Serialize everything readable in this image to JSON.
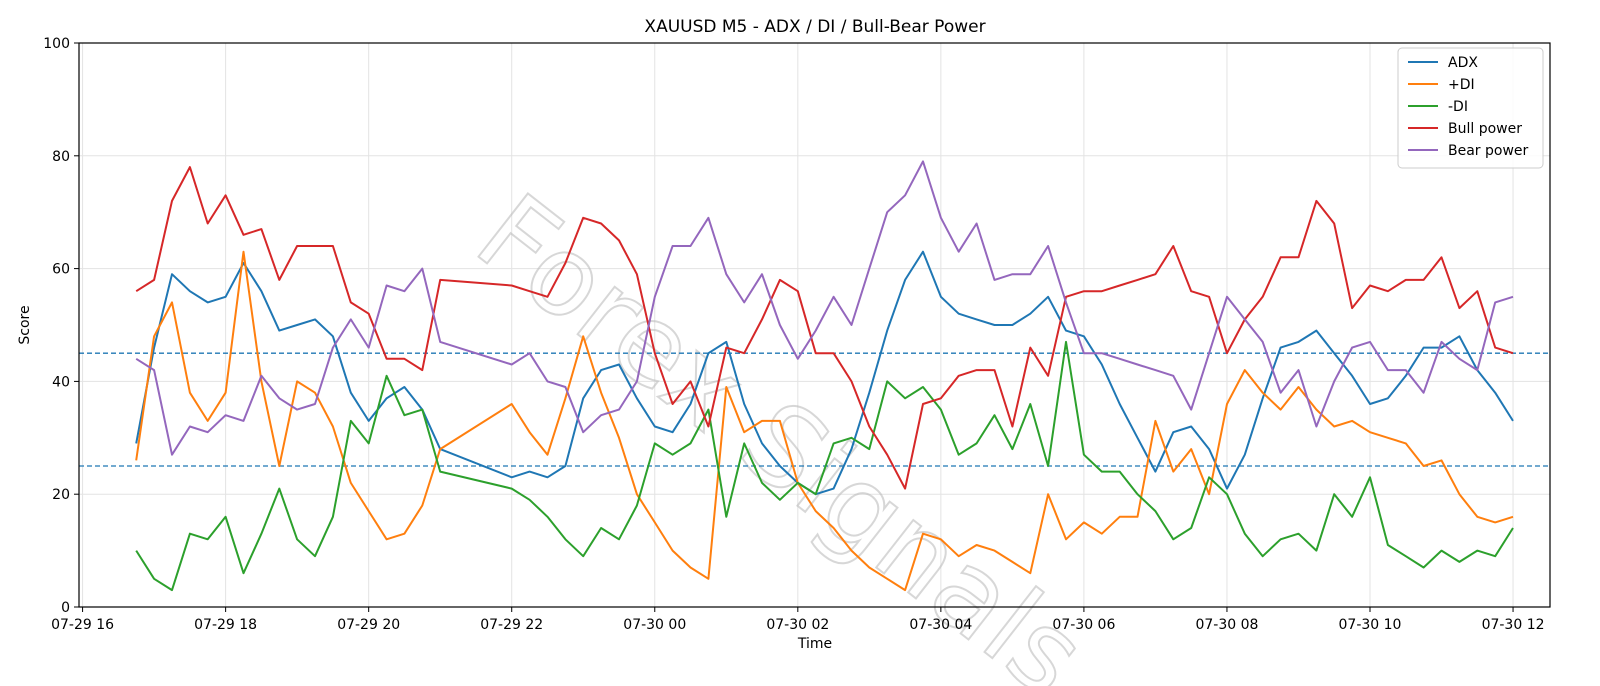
{
  "chart_data": {
    "type": "line",
    "title": "XAUUSD M5 - ADX / DI / Bull-Bear Power",
    "xlabel": "Time",
    "ylabel": "Score",
    "ylim": [
      0,
      100
    ],
    "yticks": [
      0,
      20,
      40,
      60,
      80,
      100
    ],
    "xlim": [
      "07-29 15:57",
      "07-30 12:31"
    ],
    "xticks": [
      "07-29 16",
      "07-29 18",
      "07-29 20",
      "07-29 22",
      "07-30 00",
      "07-30 02",
      "07-30 04",
      "07-30 06",
      "07-30 08",
      "07-30 10",
      "07-30 12"
    ],
    "grid": true,
    "legend_position": "top-right",
    "reference_lines": [
      {
        "y": 45,
        "style": "dashed",
        "color": "#1f77b4"
      },
      {
        "y": 25,
        "style": "dashed",
        "color": "#1f77b4"
      }
    ],
    "watermark": "Forex Signals",
    "series": [
      {
        "name": "ADX",
        "color": "#1f77b4",
        "x": [
          "07-29 16:45",
          "07-29 17:00",
          "07-29 17:15",
          "07-29 17:30",
          "07-29 17:45",
          "07-29 18:00",
          "07-29 18:15",
          "07-29 18:30",
          "07-29 18:45",
          "07-29 19:00",
          "07-29 19:15",
          "07-29 19:30",
          "07-29 19:45",
          "07-29 20:00",
          "07-29 20:15",
          "07-29 20:30",
          "07-29 20:45",
          "07-29 21:00",
          "07-29 22:00",
          "07-29 22:15",
          "07-29 22:30",
          "07-29 22:45",
          "07-29 23:00",
          "07-29 23:15",
          "07-29 23:30",
          "07-29 23:45",
          "07-30 00:00",
          "07-30 00:15",
          "07-30 00:30",
          "07-30 00:45",
          "07-30 01:00",
          "07-30 01:15",
          "07-30 01:30",
          "07-30 01:45",
          "07-30 02:00",
          "07-30 02:15",
          "07-30 02:30",
          "07-30 02:45",
          "07-30 03:00",
          "07-30 03:15",
          "07-30 03:30",
          "07-30 03:45",
          "07-30 04:00",
          "07-30 04:15",
          "07-30 04:30",
          "07-30 04:45",
          "07-30 05:00",
          "07-30 05:15",
          "07-30 05:30",
          "07-30 05:45",
          "07-30 06:00",
          "07-30 06:15",
          "07-30 06:30",
          "07-30 06:45",
          "07-30 07:00",
          "07-30 07:15",
          "07-30 07:30",
          "07-30 07:45",
          "07-30 08:00",
          "07-30 08:15",
          "07-30 08:30",
          "07-30 08:45",
          "07-30 09:00",
          "07-30 09:15",
          "07-30 09:30",
          "07-30 09:45",
          "07-30 10:00",
          "07-30 10:15",
          "07-30 10:30",
          "07-30 10:45",
          "07-30 11:00",
          "07-30 11:15",
          "07-30 11:30",
          "07-30 11:45",
          "07-30 12:00"
        ],
        "values": [
          29,
          46,
          59,
          56,
          54,
          55,
          61,
          56,
          49,
          50,
          51,
          48,
          38,
          33,
          37,
          39,
          35,
          28,
          23,
          24,
          23,
          25,
          37,
          42,
          43,
          37,
          32,
          31,
          36,
          45,
          47,
          36,
          29,
          25,
          22,
          20,
          21,
          28,
          38,
          49,
          58,
          63,
          55,
          52,
          51,
          50,
          50,
          52,
          55,
          49,
          48,
          43,
          36,
          30,
          24,
          31,
          32,
          28,
          21,
          27,
          37,
          46,
          47,
          49,
          45,
          41,
          36,
          37,
          41,
          46,
          46,
          48,
          42,
          38,
          33
        ]
      },
      {
        "name": "+DI",
        "color": "#ff7f0e",
        "x": [
          "07-29 16:45",
          "07-29 17:00",
          "07-29 17:15",
          "07-29 17:30",
          "07-29 17:45",
          "07-29 18:00",
          "07-29 18:15",
          "07-29 18:30",
          "07-29 18:45",
          "07-29 19:00",
          "07-29 19:15",
          "07-29 19:30",
          "07-29 19:45",
          "07-29 20:00",
          "07-29 20:15",
          "07-29 20:30",
          "07-29 20:45",
          "07-29 21:00",
          "07-29 22:00",
          "07-29 22:15",
          "07-29 22:30",
          "07-29 22:45",
          "07-29 23:00",
          "07-29 23:15",
          "07-29 23:30",
          "07-29 23:45",
          "07-30 00:00",
          "07-30 00:15",
          "07-30 00:30",
          "07-30 00:45",
          "07-30 01:00",
          "07-30 01:15",
          "07-30 01:30",
          "07-30 01:45",
          "07-30 02:00",
          "07-30 02:15",
          "07-30 02:30",
          "07-30 02:45",
          "07-30 03:00",
          "07-30 03:15",
          "07-30 03:30",
          "07-30 03:45",
          "07-30 04:00",
          "07-30 04:15",
          "07-30 04:30",
          "07-30 04:45",
          "07-30 05:00",
          "07-30 05:15",
          "07-30 05:30",
          "07-30 05:45",
          "07-30 06:00",
          "07-30 06:15",
          "07-30 06:30",
          "07-30 06:45",
          "07-30 07:00",
          "07-30 07:15",
          "07-30 07:30",
          "07-30 07:45",
          "07-30 08:00",
          "07-30 08:15",
          "07-30 08:30",
          "07-30 08:45",
          "07-30 09:00",
          "07-30 09:15",
          "07-30 09:30",
          "07-30 09:45",
          "07-30 10:00",
          "07-30 10:15",
          "07-30 10:30",
          "07-30 10:45",
          "07-30 11:00",
          "07-30 11:15",
          "07-30 11:30",
          "07-30 11:45",
          "07-30 12:00"
        ],
        "values": [
          26,
          48,
          54,
          38,
          33,
          38,
          63,
          40,
          25,
          40,
          38,
          32,
          22,
          17,
          12,
          13,
          18,
          28,
          36,
          31,
          27,
          37,
          48,
          38,
          30,
          20,
          15,
          10,
          7,
          5,
          39,
          31,
          33,
          33,
          22,
          17,
          14,
          10,
          7,
          5,
          3,
          13,
          12,
          9,
          11,
          10,
          8,
          6,
          20,
          12,
          15,
          13,
          16,
          16,
          33,
          24,
          28,
          20,
          36,
          42,
          38,
          35,
          39,
          35,
          32,
          33,
          31,
          30,
          29,
          25,
          26,
          20,
          16,
          15,
          16
        ]
      },
      {
        "name": "-DI",
        "color": "#2ca02c",
        "x": [
          "07-29 16:45",
          "07-29 17:00",
          "07-29 17:15",
          "07-29 17:30",
          "07-29 17:45",
          "07-29 18:00",
          "07-29 18:15",
          "07-29 18:30",
          "07-29 18:45",
          "07-29 19:00",
          "07-29 19:15",
          "07-29 19:30",
          "07-29 19:45",
          "07-29 20:00",
          "07-29 20:15",
          "07-29 20:30",
          "07-29 20:45",
          "07-29 21:00",
          "07-29 22:00",
          "07-29 22:15",
          "07-29 22:30",
          "07-29 22:45",
          "07-29 23:00",
          "07-29 23:15",
          "07-29 23:30",
          "07-29 23:45",
          "07-30 00:00",
          "07-30 00:15",
          "07-30 00:30",
          "07-30 00:45",
          "07-30 01:00",
          "07-30 01:15",
          "07-30 01:30",
          "07-30 01:45",
          "07-30 02:00",
          "07-30 02:15",
          "07-30 02:30",
          "07-30 02:45",
          "07-30 03:00",
          "07-30 03:15",
          "07-30 03:30",
          "07-30 03:45",
          "07-30 04:00",
          "07-30 04:15",
          "07-30 04:30",
          "07-30 04:45",
          "07-30 05:00",
          "07-30 05:15",
          "07-30 05:30",
          "07-30 05:45",
          "07-30 06:00",
          "07-30 06:15",
          "07-30 06:30",
          "07-30 06:45",
          "07-30 07:00",
          "07-30 07:15",
          "07-30 07:30",
          "07-30 07:45",
          "07-30 08:00",
          "07-30 08:15",
          "07-30 08:30",
          "07-30 08:45",
          "07-30 09:00",
          "07-30 09:15",
          "07-30 09:30",
          "07-30 09:45",
          "07-30 10:00",
          "07-30 10:15",
          "07-30 10:30",
          "07-30 10:45",
          "07-30 11:00",
          "07-30 11:15",
          "07-30 11:30",
          "07-30 11:45",
          "07-30 12:00"
        ],
        "values": [
          10,
          5,
          3,
          13,
          12,
          16,
          6,
          13,
          21,
          12,
          9,
          16,
          33,
          29,
          41,
          34,
          35,
          24,
          21,
          19,
          16,
          12,
          9,
          14,
          12,
          18,
          29,
          27,
          29,
          35,
          16,
          29,
          22,
          19,
          22,
          20,
          29,
          30,
          28,
          40,
          37,
          39,
          35,
          27,
          29,
          34,
          28,
          36,
          25,
          47,
          27,
          24,
          24,
          20,
          17,
          12,
          14,
          23,
          20,
          13,
          9,
          12,
          13,
          10,
          20,
          16,
          23,
          11,
          9,
          7,
          10,
          8,
          10,
          9,
          14
        ]
      },
      {
        "name": "Bull power",
        "color": "#d62728",
        "x": [
          "07-29 16:45",
          "07-29 17:00",
          "07-29 17:15",
          "07-29 17:30",
          "07-29 17:45",
          "07-29 18:00",
          "07-29 18:15",
          "07-29 18:30",
          "07-29 18:45",
          "07-29 19:00",
          "07-29 19:15",
          "07-29 19:30",
          "07-29 19:45",
          "07-29 20:00",
          "07-29 20:15",
          "07-29 20:30",
          "07-29 20:45",
          "07-29 21:00",
          "07-29 22:00",
          "07-29 22:15",
          "07-29 22:30",
          "07-29 22:45",
          "07-29 23:00",
          "07-29 23:15",
          "07-29 23:30",
          "07-29 23:45",
          "07-30 00:00",
          "07-30 00:15",
          "07-30 00:30",
          "07-30 00:45",
          "07-30 01:00",
          "07-30 01:15",
          "07-30 01:30",
          "07-30 01:45",
          "07-30 02:00",
          "07-30 02:15",
          "07-30 02:30",
          "07-30 02:45",
          "07-30 03:00",
          "07-30 03:15",
          "07-30 03:30",
          "07-30 03:45",
          "07-30 04:00",
          "07-30 04:15",
          "07-30 04:30",
          "07-30 04:45",
          "07-30 05:00",
          "07-30 05:15",
          "07-30 05:30",
          "07-30 05:45",
          "07-30 06:00",
          "07-30 06:15",
          "07-30 06:30",
          "07-30 06:45",
          "07-30 07:00",
          "07-30 07:15",
          "07-30 07:30",
          "07-30 07:45",
          "07-30 08:00",
          "07-30 08:15",
          "07-30 08:30",
          "07-30 08:45",
          "07-30 09:00",
          "07-30 09:15",
          "07-30 09:30",
          "07-30 09:45",
          "07-30 10:00",
          "07-30 10:15",
          "07-30 10:30",
          "07-30 10:45",
          "07-30 11:00",
          "07-30 11:15",
          "07-30 11:30",
          "07-30 11:45",
          "07-30 12:00"
        ],
        "values": [
          56,
          58,
          72,
          78,
          68,
          73,
          66,
          67,
          58,
          64,
          64,
          64,
          54,
          52,
          44,
          44,
          42,
          58,
          57,
          56,
          55,
          61,
          69,
          68,
          65,
          59,
          45,
          36,
          40,
          32,
          46,
          45,
          51,
          58,
          56,
          45,
          45,
          40,
          32,
          27,
          21,
          36,
          37,
          41,
          42,
          42,
          32,
          46,
          41,
          55,
          56,
          56,
          57,
          58,
          59,
          64,
          56,
          55,
          45,
          51,
          55,
          62,
          62,
          72,
          68,
          53,
          57,
          56,
          58,
          58,
          62,
          53,
          56,
          46,
          45
        ]
      },
      {
        "name": "Bear power",
        "color": "#9467bd",
        "x": [
          "07-29 16:45",
          "07-29 17:00",
          "07-29 17:15",
          "07-29 17:30",
          "07-29 17:45",
          "07-29 18:00",
          "07-29 18:15",
          "07-29 18:30",
          "07-29 18:45",
          "07-29 19:00",
          "07-29 19:15",
          "07-29 19:30",
          "07-29 19:45",
          "07-29 20:00",
          "07-29 20:15",
          "07-29 20:30",
          "07-29 20:45",
          "07-29 21:00",
          "07-29 22:00",
          "07-29 22:15",
          "07-29 22:30",
          "07-29 22:45",
          "07-29 23:00",
          "07-29 23:15",
          "07-29 23:30",
          "07-29 23:45",
          "07-30 00:00",
          "07-30 00:15",
          "07-30 00:30",
          "07-30 00:45",
          "07-30 01:00",
          "07-30 01:15",
          "07-30 01:30",
          "07-30 01:45",
          "07-30 02:00",
          "07-30 02:15",
          "07-30 02:30",
          "07-30 02:45",
          "07-30 03:00",
          "07-30 03:15",
          "07-30 03:30",
          "07-30 03:45",
          "07-30 04:00",
          "07-30 04:15",
          "07-30 04:30",
          "07-30 04:45",
          "07-30 05:00",
          "07-30 05:15",
          "07-30 05:30",
          "07-30 05:45",
          "07-30 06:00",
          "07-30 06:15",
          "07-30 06:30",
          "07-30 06:45",
          "07-30 07:00",
          "07-30 07:15",
          "07-30 07:30",
          "07-30 07:45",
          "07-30 08:00",
          "07-30 08:15",
          "07-30 08:30",
          "07-30 08:45",
          "07-30 09:00",
          "07-30 09:15",
          "07-30 09:30",
          "07-30 09:45",
          "07-30 10:00",
          "07-30 10:15",
          "07-30 10:30",
          "07-30 10:45",
          "07-30 11:00",
          "07-30 11:15",
          "07-30 11:30",
          "07-30 11:45",
          "07-30 12:00"
        ],
        "values": [
          44,
          42,
          27,
          32,
          31,
          34,
          33,
          41,
          37,
          35,
          36,
          46,
          51,
          46,
          57,
          56,
          60,
          47,
          43,
          45,
          40,
          39,
          31,
          34,
          35,
          40,
          55,
          64,
          64,
          69,
          59,
          54,
          59,
          50,
          44,
          49,
          55,
          50,
          60,
          70,
          73,
          79,
          69,
          63,
          68,
          58,
          59,
          59,
          64,
          54,
          45,
          45,
          44,
          43,
          42,
          41,
          35,
          45,
          55,
          51,
          47,
          38,
          42,
          32,
          40,
          46,
          47,
          42,
          42,
          38,
          47,
          44,
          42,
          54,
          55
        ]
      }
    ]
  }
}
